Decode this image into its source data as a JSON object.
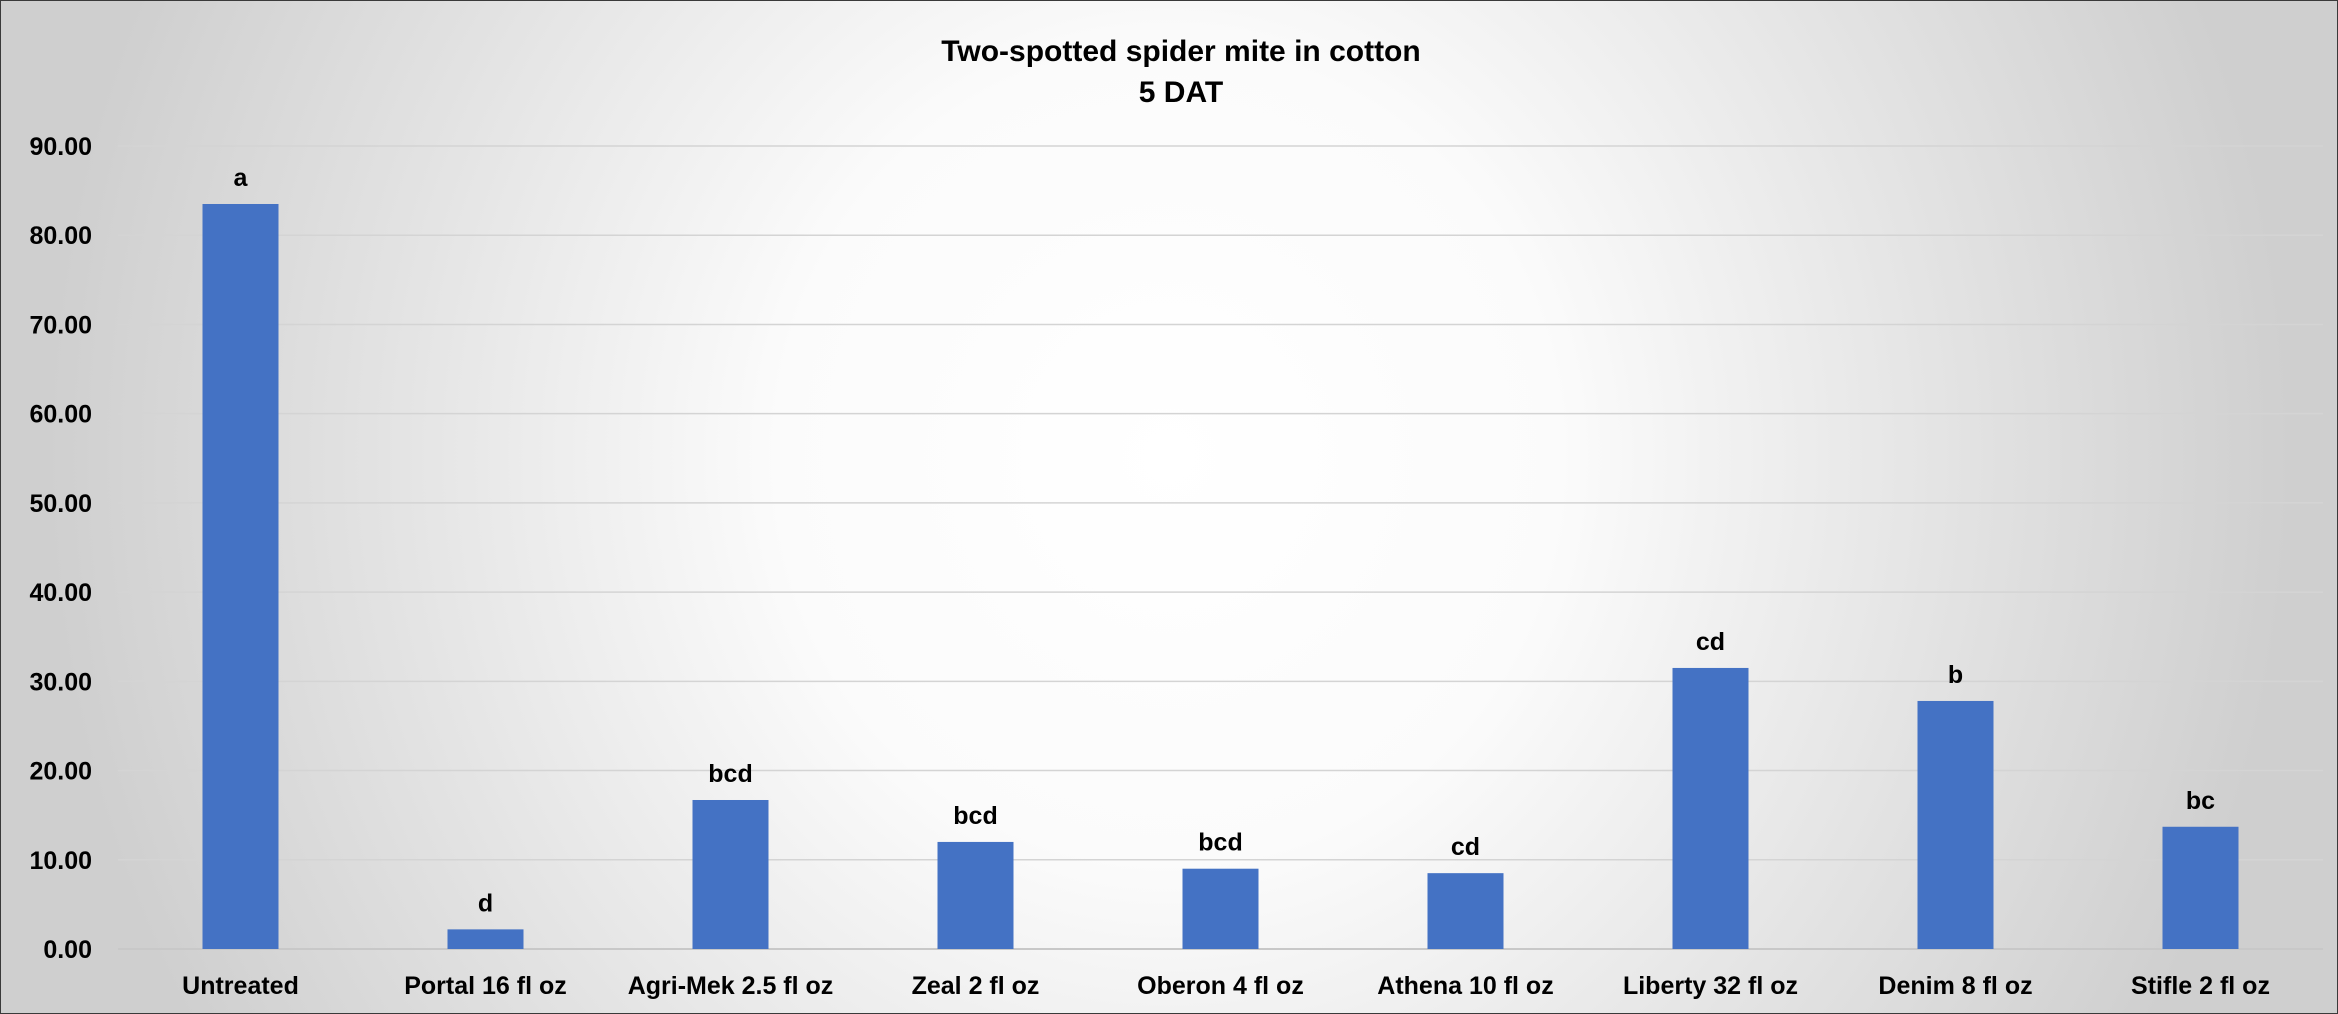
{
  "chart_data": {
    "type": "bar",
    "title": "Two-spotted spider mite in cotton",
    "subtitle": "5 DAT",
    "xlabel": "",
    "ylabel": "",
    "ylim": [
      0,
      90
    ],
    "y_ticks": [
      "0.00",
      "10.00",
      "20.00",
      "30.00",
      "40.00",
      "50.00",
      "60.00",
      "70.00",
      "80.00",
      "90.00"
    ],
    "categories": [
      "Untreated",
      "Portal 16 fl oz",
      "Agri-Mek 2.5 fl oz",
      "Zeal 2 fl oz",
      "Oberon 4 fl oz",
      "Athena 10 fl oz",
      "Liberty 32 fl oz",
      "Denim 8 fl oz",
      "Stifle 2 fl oz"
    ],
    "values": [
      83.5,
      2.2,
      16.7,
      12.0,
      9.0,
      8.5,
      31.5,
      27.8,
      13.7
    ],
    "data_labels": [
      "a",
      "d",
      "bcd",
      "bcd",
      "bcd",
      "cd",
      "cd",
      "b",
      "bc"
    ],
    "grid": true,
    "legend": "none",
    "bar_color": "#4472C4"
  }
}
